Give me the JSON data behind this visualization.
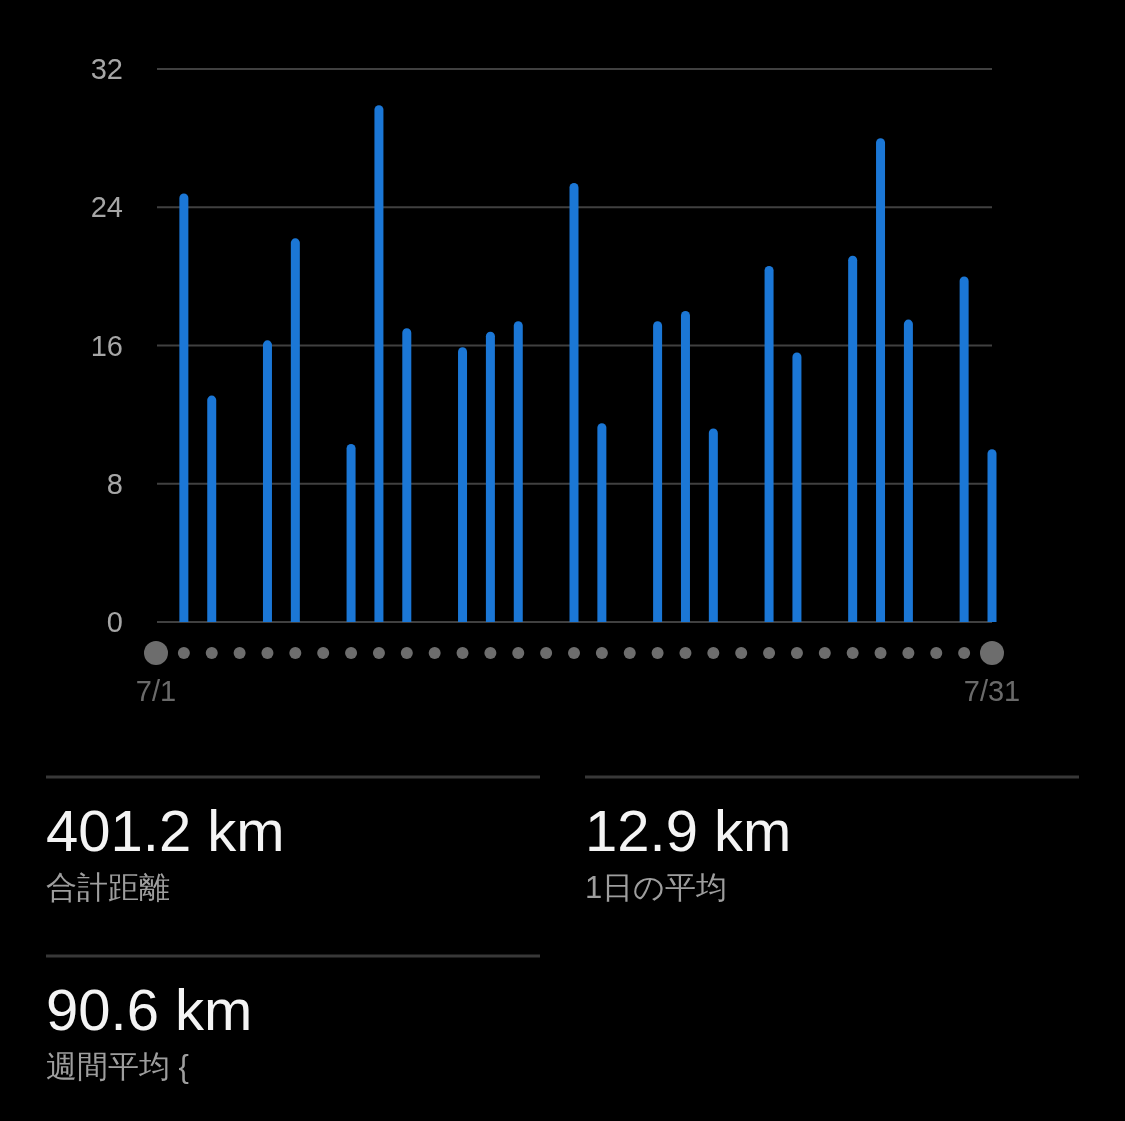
{
  "chart_data": {
    "type": "bar",
    "categories": [
      "7/1",
      null,
      null,
      null,
      null,
      null,
      null,
      null,
      null,
      null,
      null,
      null,
      null,
      null,
      null,
      null,
      null,
      null,
      null,
      null,
      null,
      null,
      null,
      null,
      null,
      null,
      null,
      null,
      null,
      null,
      "7/31"
    ],
    "values": [
      null,
      24.8,
      13.1,
      null,
      16.3,
      22.2,
      null,
      10.3,
      29.9,
      17.0,
      null,
      15.9,
      16.8,
      17.4,
      null,
      25.4,
      11.5,
      null,
      17.4,
      18.0,
      11.2,
      null,
      20.6,
      15.6,
      null,
      21.2,
      28.0,
      17.5,
      null,
      20.0,
      10.0
    ],
    "color": "#1b77d6",
    "ylim": [
      0,
      32
    ],
    "yticks": [
      0,
      8,
      16,
      24,
      32
    ],
    "grid": "y",
    "annotations": [
      "401.2 km",
      "合計距離",
      "12.9 km",
      "1日の平均",
      "90.6 km",
      "週間平均 {"
    ]
  }
}
